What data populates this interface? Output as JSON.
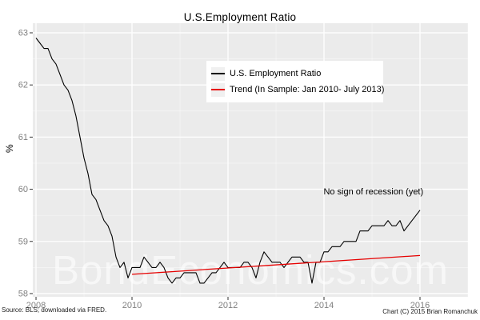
{
  "chart_data": {
    "type": "line",
    "title": "U.S.Employment Ratio",
    "ylabel": "%",
    "watermark": "BondEconomics.com",
    "x_domain": [
      2007.933,
      2017.0
    ],
    "y_domain": [
      57.938,
      63.184
    ],
    "x_major_ticks": [
      2008,
      2010,
      2012,
      2014,
      2016
    ],
    "x_minor_ticks": [
      2009,
      2011,
      2013,
      2015,
      2017
    ],
    "y_major_ticks": [
      58,
      59,
      60,
      61,
      62,
      63
    ],
    "y_minor_ticks": [
      58.5,
      59.5,
      60.5,
      61.5,
      62.5
    ],
    "grid": true,
    "legend_position": "upper-center-inside",
    "annotation": {
      "text": "No sign of recession (yet)",
      "x": 2015.03,
      "y": 59.95
    },
    "series": [
      {
        "name": "U.S. Employment Ratio",
        "color": "#000000",
        "frequency": "monthly",
        "start_year": 2008,
        "start_month": 1,
        "values": [
          62.9,
          62.8,
          62.7,
          62.7,
          62.5,
          62.4,
          62.2,
          62.0,
          61.9,
          61.7,
          61.4,
          61.0,
          60.6,
          60.3,
          59.9,
          59.8,
          59.6,
          59.4,
          59.3,
          59.1,
          58.7,
          58.5,
          58.6,
          58.3,
          58.5,
          58.5,
          58.5,
          58.7,
          58.6,
          58.5,
          58.5,
          58.6,
          58.5,
          58.3,
          58.2,
          58.3,
          58.3,
          58.4,
          58.4,
          58.4,
          58.4,
          58.2,
          58.2,
          58.3,
          58.4,
          58.4,
          58.5,
          58.6,
          58.5,
          58.5,
          58.5,
          58.5,
          58.6,
          58.6,
          58.5,
          58.3,
          58.6,
          58.8,
          58.7,
          58.6,
          58.6,
          58.6,
          58.5,
          58.6,
          58.7,
          58.7,
          58.7,
          58.6,
          58.6,
          58.2,
          58.6,
          58.6,
          58.8,
          58.8,
          58.9,
          58.9,
          58.9,
          59.0,
          59.0,
          59.0,
          59.0,
          59.2,
          59.2,
          59.2,
          59.3,
          59.3,
          59.3,
          59.3,
          59.4,
          59.3,
          59.3,
          59.4,
          59.2,
          59.3,
          59.4,
          59.5,
          59.6
        ]
      },
      {
        "name": "Trend (In Sample: Jan 2010- July 2013)",
        "color": "#e60000",
        "points": [
          {
            "x": 2010.0,
            "y": 58.37
          },
          {
            "x": 2016.0,
            "y": 58.73
          }
        ]
      }
    ],
    "colors": {
      "panel_bg": "#ebebeb",
      "grid_major": "#ffffff",
      "grid_minor": "#ffffff",
      "tick_mark": "#333333",
      "tick_label": "#7f7f7f",
      "watermark": "#ffffff"
    }
  },
  "legend": {
    "items": [
      {
        "label": "U.S. Employment Ratio",
        "color": "#000000"
      },
      {
        "label": "Trend (In Sample: Jan 2010- July 2013)",
        "color": "#e60000"
      }
    ]
  },
  "footer": {
    "source": "Source: BLS; downloaded via FRED.",
    "copyright": "Chart (C) 2015 Brian Romanchuk"
  }
}
